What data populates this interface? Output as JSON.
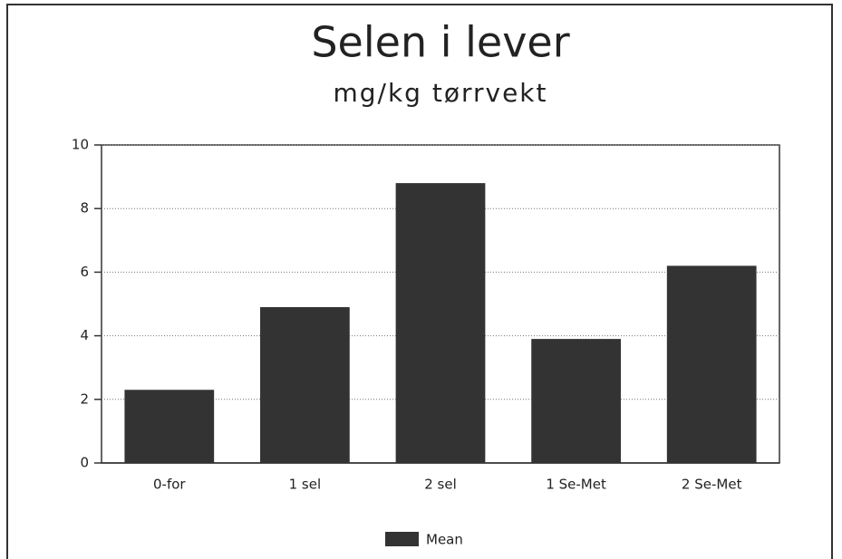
{
  "chart_data": {
    "type": "bar",
    "title": "Selen i lever",
    "subtitle": "mg/kg tørrvekt",
    "categories": [
      "0-for",
      "1 sel",
      "2 sel",
      "1 Se-Met",
      "2 Se-Met"
    ],
    "series": [
      {
        "name": "Mean",
        "color": "#333333",
        "values": [
          2.3,
          4.9,
          8.8,
          3.9,
          6.2
        ]
      }
    ],
    "ylim": [
      0,
      10
    ],
    "yticks": [
      0,
      2,
      4,
      6,
      8,
      10
    ],
    "grid": true,
    "legend": "bottom"
  }
}
